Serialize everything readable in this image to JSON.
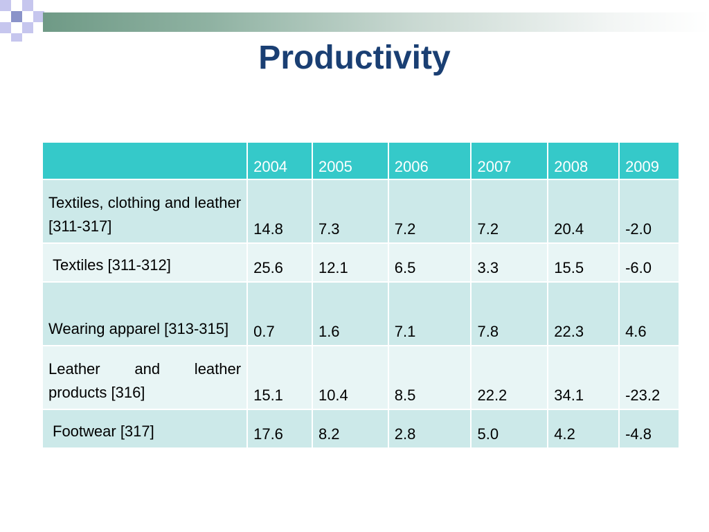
{
  "slide": {
    "title": "Productivity"
  },
  "theme": {
    "title_color": "#1a3f73",
    "header_color": "#35c9c9",
    "row_dark": "#cce9e9",
    "row_light": "#e8f5f5",
    "decor_square_color": "#c6c6ee",
    "decor_square_color_dark": "#8a93c9"
  },
  "table": {
    "columns": [
      "",
      "2004",
      "2005",
      "2006",
      "2007",
      "2008",
      "2009"
    ],
    "rows": [
      {
        "label": "Textiles, clothing and leather [311-317]",
        "values": [
          "14.8",
          "7.3",
          "7.2",
          "7.2",
          "20.4",
          "-2.0"
        ]
      },
      {
        "label": "Textiles [311-312]",
        "values": [
          "25.6",
          "12.1",
          "6.5",
          "3.3",
          "15.5",
          "-6.0"
        ]
      },
      {
        "label": "Wearing apparel [313-315]",
        "values": [
          "0.7",
          "1.6",
          "7.1",
          "7.8",
          "22.3",
          "4.6"
        ]
      },
      {
        "label": "Leather and leather products [316]",
        "values": [
          "15.1",
          "10.4",
          "8.5",
          "22.2",
          "34.1",
          "-23.2"
        ]
      },
      {
        "label": "Footwear [317]",
        "values": [
          "17.6",
          "8.2",
          "2.8",
          "5.0",
          "4.2",
          "-4.8"
        ]
      }
    ]
  }
}
